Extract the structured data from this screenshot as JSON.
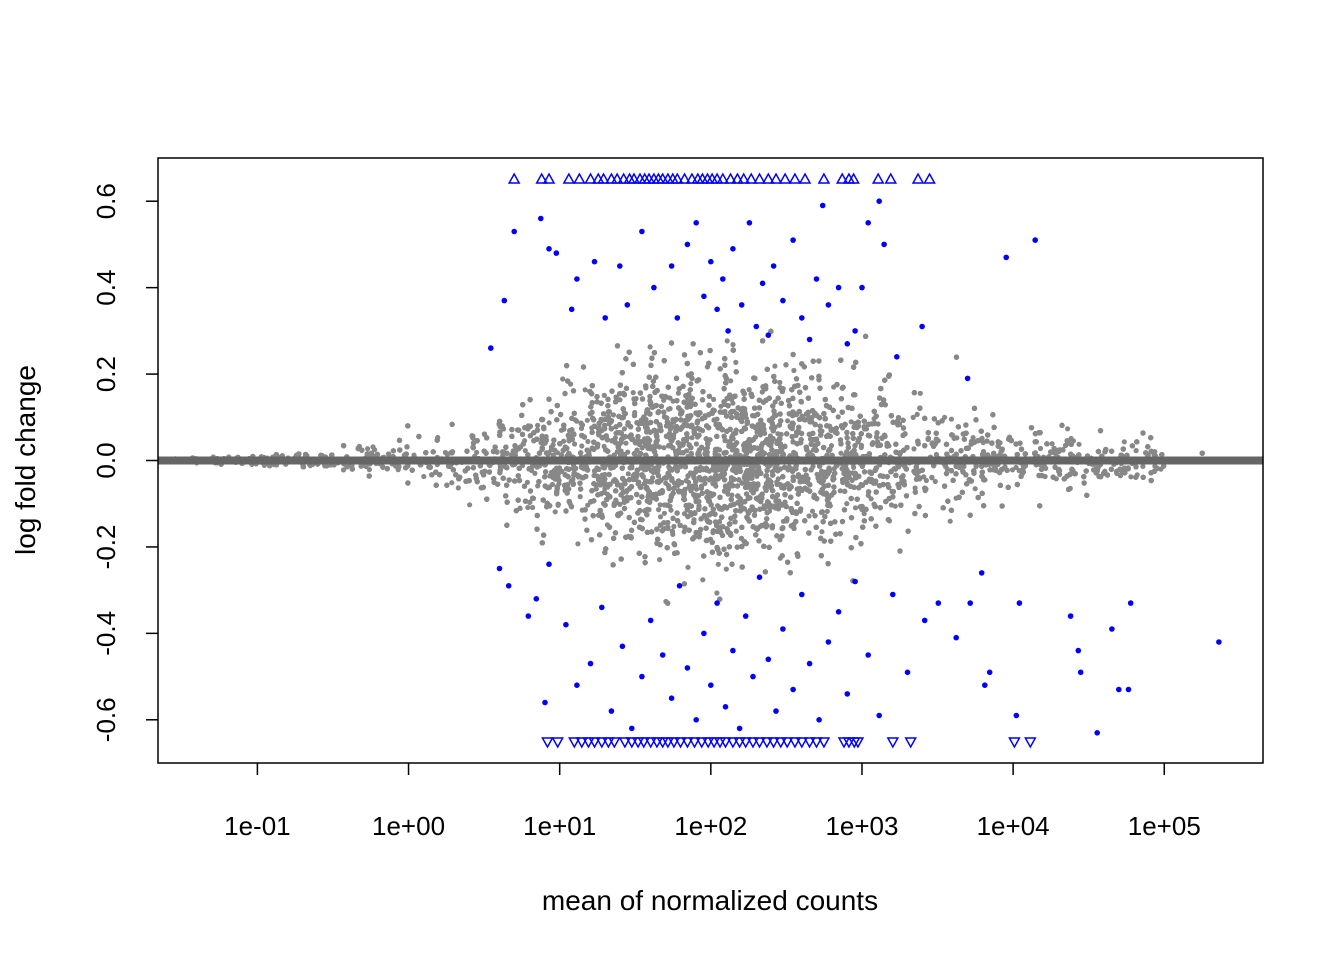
{
  "chart_data": {
    "type": "scatter",
    "title": "",
    "xlabel": "mean of normalized counts",
    "ylabel": "log fold change",
    "x_scale": "log10",
    "xlim": [
      0.022,
      450000
    ],
    "ylim": [
      -0.7,
      0.7
    ],
    "x_ticks": [
      {
        "value": 0.1,
        "label": "1e-01"
      },
      {
        "value": 1,
        "label": "1e+00"
      },
      {
        "value": 10,
        "label": "1e+01"
      },
      {
        "value": 100,
        "label": "1e+02"
      },
      {
        "value": 1000,
        "label": "1e+03"
      },
      {
        "value": 10000,
        "label": "1e+04"
      },
      {
        "value": 100000,
        "label": "1e+05"
      }
    ],
    "y_ticks": [
      {
        "value": -0.6,
        "label": "-0.6"
      },
      {
        "value": -0.4,
        "label": "-0.4"
      },
      {
        "value": -0.2,
        "label": "-0.2"
      },
      {
        "value": 0.0,
        "label": "0.0"
      },
      {
        "value": 0.2,
        "label": "0.2"
      },
      {
        "value": 0.4,
        "label": "0.4"
      },
      {
        "value": 0.6,
        "label": "0.6"
      }
    ],
    "reference_line": {
      "y": 0,
      "color": "#666666"
    },
    "grid": false,
    "legend": "none",
    "colors": {
      "not_significant": "#888888",
      "significant": "#0000ff",
      "out_of_range_marker": "#0000ff"
    },
    "gray_cloud_envelope": [
      {
        "x": 0.03,
        "spread": 0.006
      },
      {
        "x": 0.1,
        "spread": 0.012
      },
      {
        "x": 0.3,
        "spread": 0.025
      },
      {
        "x": 1,
        "spread": 0.06
      },
      {
        "x": 3,
        "spread": 0.11
      },
      {
        "x": 10,
        "spread": 0.18
      },
      {
        "x": 30,
        "spread": 0.23
      },
      {
        "x": 100,
        "spread": 0.27
      },
      {
        "x": 300,
        "spread": 0.25
      },
      {
        "x": 1000,
        "spread": 0.21
      },
      {
        "x": 3000,
        "spread": 0.15
      },
      {
        "x": 10000,
        "spread": 0.09
      },
      {
        "x": 30000,
        "spread": 0.07
      },
      {
        "x": 100000,
        "spread": 0.05
      }
    ],
    "significant_points": [
      {
        "x": 4.3,
        "y": 0.37
      },
      {
        "x": 3.5,
        "y": 0.26
      },
      {
        "x": 5.0,
        "y": 0.53
      },
      {
        "x": 7.5,
        "y": 0.56
      },
      {
        "x": 8.5,
        "y": 0.49
      },
      {
        "x": 9.5,
        "y": 0.48
      },
      {
        "x": 12,
        "y": 0.35
      },
      {
        "x": 13,
        "y": 0.42
      },
      {
        "x": 17,
        "y": 0.46
      },
      {
        "x": 20,
        "y": 0.33
      },
      {
        "x": 25,
        "y": 0.45
      },
      {
        "x": 28,
        "y": 0.36
      },
      {
        "x": 35,
        "y": 0.53
      },
      {
        "x": 42,
        "y": 0.4
      },
      {
        "x": 55,
        "y": 0.45
      },
      {
        "x": 60,
        "y": 0.33
      },
      {
        "x": 70,
        "y": 0.5
      },
      {
        "x": 80,
        "y": 0.55
      },
      {
        "x": 90,
        "y": 0.38
      },
      {
        "x": 100,
        "y": 0.46
      },
      {
        "x": 110,
        "y": 0.35
      },
      {
        "x": 120,
        "y": 0.42
      },
      {
        "x": 130,
        "y": 0.3
      },
      {
        "x": 140,
        "y": 0.49
      },
      {
        "x": 160,
        "y": 0.36
      },
      {
        "x": 180,
        "y": 0.55
      },
      {
        "x": 200,
        "y": 0.31
      },
      {
        "x": 220,
        "y": 0.41
      },
      {
        "x": 240,
        "y": 0.29
      },
      {
        "x": 260,
        "y": 0.45
      },
      {
        "x": 300,
        "y": 0.37
      },
      {
        "x": 350,
        "y": 0.51
      },
      {
        "x": 400,
        "y": 0.33
      },
      {
        "x": 450,
        "y": 0.28
      },
      {
        "x": 500,
        "y": 0.42
      },
      {
        "x": 550,
        "y": 0.59
      },
      {
        "x": 600,
        "y": 0.36
      },
      {
        "x": 700,
        "y": 0.4
      },
      {
        "x": 800,
        "y": 0.27
      },
      {
        "x": 900,
        "y": 0.3
      },
      {
        "x": 1000,
        "y": 0.4
      },
      {
        "x": 1100,
        "y": 0.55
      },
      {
        "x": 1300,
        "y": 0.6
      },
      {
        "x": 1400,
        "y": 0.5
      },
      {
        "x": 1700,
        "y": 0.24
      },
      {
        "x": 2500,
        "y": 0.31
      },
      {
        "x": 5000,
        "y": 0.19
      },
      {
        "x": 9000,
        "y": 0.47
      },
      {
        "x": 14000,
        "y": 0.51
      },
      {
        "x": 4.0,
        "y": -0.25
      },
      {
        "x": 4.6,
        "y": -0.29
      },
      {
        "x": 6.2,
        "y": -0.36
      },
      {
        "x": 7.0,
        "y": -0.32
      },
      {
        "x": 8.0,
        "y": -0.56
      },
      {
        "x": 8.5,
        "y": -0.24
      },
      {
        "x": 11,
        "y": -0.38
      },
      {
        "x": 13,
        "y": -0.52
      },
      {
        "x": 16,
        "y": -0.47
      },
      {
        "x": 19,
        "y": -0.34
      },
      {
        "x": 22,
        "y": -0.58
      },
      {
        "x": 26,
        "y": -0.43
      },
      {
        "x": 30,
        "y": -0.62
      },
      {
        "x": 35,
        "y": -0.5
      },
      {
        "x": 40,
        "y": -0.37
      },
      {
        "x": 48,
        "y": -0.45
      },
      {
        "x": 55,
        "y": -0.55
      },
      {
        "x": 62,
        "y": -0.29
      },
      {
        "x": 70,
        "y": -0.48
      },
      {
        "x": 80,
        "y": -0.6
      },
      {
        "x": 90,
        "y": -0.4
      },
      {
        "x": 100,
        "y": -0.52
      },
      {
        "x": 110,
        "y": -0.33
      },
      {
        "x": 125,
        "y": -0.57
      },
      {
        "x": 140,
        "y": -0.44
      },
      {
        "x": 155,
        "y": -0.62
      },
      {
        "x": 170,
        "y": -0.36
      },
      {
        "x": 190,
        "y": -0.5
      },
      {
        "x": 210,
        "y": -0.27
      },
      {
        "x": 240,
        "y": -0.46
      },
      {
        "x": 270,
        "y": -0.58
      },
      {
        "x": 300,
        "y": -0.39
      },
      {
        "x": 350,
        "y": -0.53
      },
      {
        "x": 400,
        "y": -0.31
      },
      {
        "x": 450,
        "y": -0.47
      },
      {
        "x": 520,
        "y": -0.6
      },
      {
        "x": 600,
        "y": -0.42
      },
      {
        "x": 700,
        "y": -0.35
      },
      {
        "x": 800,
        "y": -0.54
      },
      {
        "x": 900,
        "y": -0.28
      },
      {
        "x": 1100,
        "y": -0.45
      },
      {
        "x": 1300,
        "y": -0.59
      },
      {
        "x": 1600,
        "y": -0.31
      },
      {
        "x": 2000,
        "y": -0.49
      },
      {
        "x": 2600,
        "y": -0.37
      },
      {
        "x": 3200,
        "y": -0.33
      },
      {
        "x": 4200,
        "y": -0.41
      },
      {
        "x": 5200,
        "y": -0.33
      },
      {
        "x": 6200,
        "y": -0.26
      },
      {
        "x": 6500,
        "y": -0.52
      },
      {
        "x": 7000,
        "y": -0.49
      },
      {
        "x": 10500,
        "y": -0.59
      },
      {
        "x": 11000,
        "y": -0.33
      },
      {
        "x": 24000,
        "y": -0.36
      },
      {
        "x": 27000,
        "y": -0.44
      },
      {
        "x": 28000,
        "y": -0.49
      },
      {
        "x": 36000,
        "y": -0.63
      },
      {
        "x": 45000,
        "y": -0.39
      },
      {
        "x": 50000,
        "y": -0.53
      },
      {
        "x": 58000,
        "y": -0.53
      },
      {
        "x": 60000,
        "y": -0.33
      },
      {
        "x": 230000,
        "y": -0.42
      }
    ],
    "upper_out_of_range_x": [
      5,
      7.6,
      8.5,
      11.5,
      13.5,
      16,
      18,
      19.5,
      22,
      24,
      26.5,
      29,
      31,
      34,
      36.5,
      39,
      42,
      45,
      48,
      52,
      56,
      60,
      67,
      75,
      82,
      88,
      95,
      102,
      110,
      120,
      135,
      150,
      165,
      185,
      210,
      240,
      270,
      310,
      360,
      420,
      560,
      740,
      820,
      880,
      1280,
      1550,
      2350,
      2800
    ],
    "lower_out_of_range_x": [
      8.3,
      9.7,
      12.5,
      14,
      15.5,
      17,
      19,
      21,
      23,
      27,
      30,
      33,
      36,
      40,
      44,
      48,
      52,
      57,
      63,
      70,
      78,
      87,
      96,
      105,
      115,
      125,
      140,
      155,
      170,
      190,
      210,
      235,
      260,
      290,
      320,
      360,
      400,
      450,
      500,
      560,
      760,
      820,
      890,
      940,
      1600,
      2100,
      10200,
      13000
    ]
  }
}
